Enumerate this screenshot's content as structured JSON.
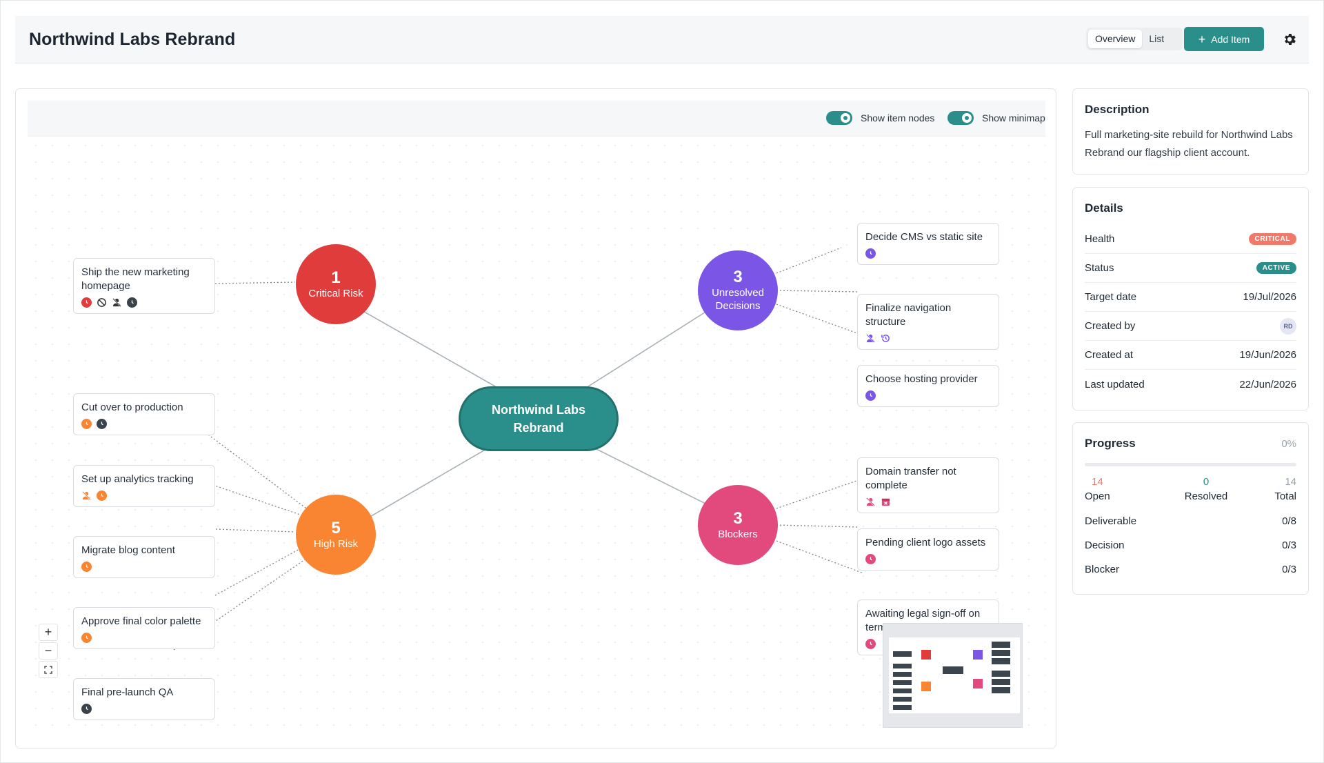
{
  "header": {
    "title": "Northwind Labs Rebrand",
    "view_tabs": [
      "Overview",
      "List"
    ],
    "active_tab": "Overview",
    "add_button": "Add Item"
  },
  "toolbar": {
    "toggle_items": "Show item nodes",
    "toggle_minimap": "Show minimap"
  },
  "graph": {
    "center": "Northwind Labs Rebrand",
    "hubs": {
      "critical": {
        "count": "1",
        "label": "Critical Risk",
        "color": "#e03c3c"
      },
      "decisions": {
        "count": "3",
        "label": "Unresolved Decisions",
        "color": "#7b55e6"
      },
      "high": {
        "count": "5",
        "label": "High Risk",
        "color": "#f98431"
      },
      "blockers": {
        "count": "3",
        "label": "Blockers",
        "color": "#e2497c"
      }
    },
    "items": {
      "i1": "Ship the new marketing homepage",
      "i2": "Cut over to production",
      "i3": "Set up analytics tracking",
      "i4": "Migrate blog content",
      "i5": "Approve final color palette",
      "i6": "Final pre-launch QA",
      "d1": "Decide CMS vs static site",
      "d2": "Finalize navigation structure",
      "d3": "Choose hosting provider",
      "b1": "Domain transfer not complete",
      "b2": "Pending client logo assets",
      "b3": "Awaiting legal sign-off on terms"
    }
  },
  "description": {
    "title": "Description",
    "text": "Full marketing-site rebuild for Northwind Labs Rebrand our flagship client account."
  },
  "details": {
    "title": "Details",
    "health_label": "Health",
    "health_value": "CRITICAL",
    "status_label": "Status",
    "status_value": "ACTIVE",
    "target_label": "Target date",
    "target_value": "19/Jul/2026",
    "created_by_label": "Created by",
    "created_by_value": "RD",
    "created_at_label": "Created at",
    "created_at_value": "19/Jun/2026",
    "updated_label": "Last updated",
    "updated_value": "22/Jun/2026"
  },
  "progress": {
    "title": "Progress",
    "percent": "0%",
    "fraction": 0,
    "open_count": "14",
    "open_label": "Open",
    "resolved_count": "0",
    "resolved_label": "Resolved",
    "total_count": "14",
    "total_label": "Total",
    "types": [
      {
        "label": "Deliverable",
        "value": "0/8"
      },
      {
        "label": "Decision",
        "value": "0/3"
      },
      {
        "label": "Blocker",
        "value": "0/3"
      }
    ]
  },
  "colors": {
    "accent": "#2a8f8a",
    "critical": "#e03c3c",
    "decision": "#7b55e6",
    "high": "#f98431",
    "blocker": "#e2497c",
    "dark": "#3a424b"
  }
}
